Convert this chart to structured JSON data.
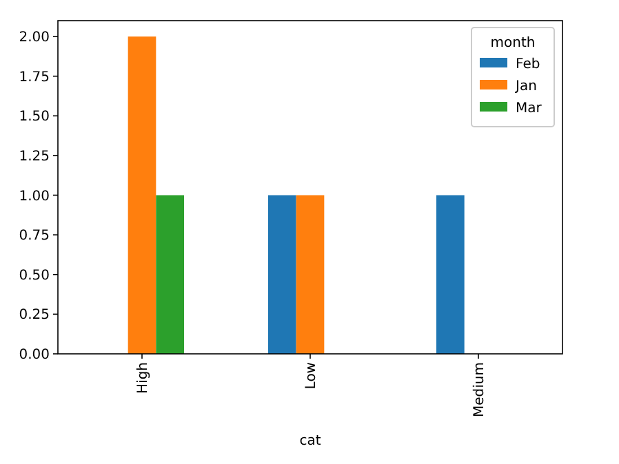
{
  "chart_data": {
    "type": "bar",
    "xlabel": "cat",
    "legend_title": "month",
    "categories": [
      "High",
      "Low",
      "Medium"
    ],
    "series": [
      {
        "name": "Feb",
        "color": "#1f77b4",
        "values": [
          null,
          1,
          1
        ]
      },
      {
        "name": "Jan",
        "color": "#ff7f0e",
        "values": [
          2,
          1,
          null
        ]
      },
      {
        "name": "Mar",
        "color": "#2ca02c",
        "values": [
          1,
          null,
          null
        ]
      }
    ],
    "ylim": [
      0,
      2.1
    ],
    "yticks": [
      {
        "value": 0,
        "label": "0.00"
      },
      {
        "value": 0.25,
        "label": "0.25"
      },
      {
        "value": 0.5,
        "label": "0.50"
      },
      {
        "value": 0.75,
        "label": "0.75"
      },
      {
        "value": 1,
        "label": "1.00"
      },
      {
        "value": 1.25,
        "label": "1.25"
      },
      {
        "value": 1.5,
        "label": "1.50"
      },
      {
        "value": 1.75,
        "label": "1.75"
      },
      {
        "value": 2,
        "label": "2.00"
      }
    ],
    "grid": false,
    "legend": "top right"
  }
}
